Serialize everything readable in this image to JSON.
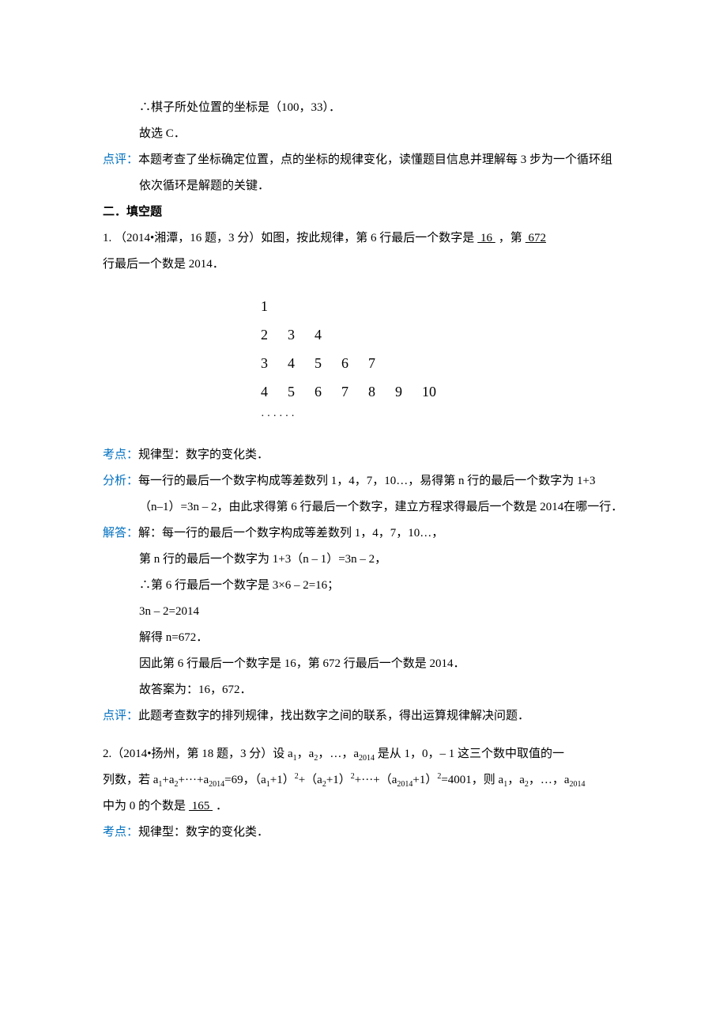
{
  "intro": {
    "line1": "∴棋子所处位置的坐标是（100，33）．",
    "line2": "故选 C．"
  },
  "review": {
    "label": "点评：",
    "text": "本题考查了坐标确定位置，点的坐标的规律变化，读懂题目信息并理解每 3 步为一个循环组依次循环是解题的关键．"
  },
  "section2": {
    "title": "二．填空题"
  },
  "q1": {
    "stem_a": "1.  （2014•湘潭，16 题，3 分）如图，按此规律，第 6 行最后一个数字是",
    "blank1": "  16  ",
    "stem_b": "，第",
    "blank2": "  672  ",
    "stem_c": "行最后一个数是 2014．",
    "pattern": {
      "r1": [
        "1"
      ],
      "r2": [
        "2",
        "3",
        "4"
      ],
      "r3": [
        "3",
        "4",
        "5",
        "6",
        "7"
      ],
      "r4": [
        "4",
        "5",
        "6",
        "7",
        "8",
        "9",
        "10"
      ],
      "dots": "······"
    },
    "kaodian": {
      "label": "考点：",
      "text": "规律型：数字的变化类．"
    },
    "fenxi": {
      "label": "分析：",
      "l1": "每一行的最后一个数字构成等差数列 1，4，7，10…，易得第 n 行的最后一个数字为 1+3",
      "l2": "（n–1）=3n – 2，由此求得第 6 行最后一个数字，建立方程求得最后一个数是 2014在哪一行．"
    },
    "jieda": {
      "label": "解答：",
      "l1": "解：每一行的最后一个数字构成等差数列 1，4，7，10…，",
      "l2": "第 n 行的最后一个数字为 1+3（n – 1）=3n – 2，",
      "l3": "∴第 6 行最后一个数字是 3×6 – 2=16；",
      "l4": "3n – 2=2014",
      "l5": "解得 n=672．",
      "l6": "因此第 6 行最后一个数字是 16，第 672 行最后一个数是 2014．",
      "l7": "故答案为：16，672．"
    },
    "dianping": {
      "label": "点评：",
      "text": "此题考查数字的排列规律，找出数字之间的联系，得出运算规律解决问题．"
    }
  },
  "q2": {
    "line1_a": "2.（2014•扬州，第 18 题，3 分）设 a",
    "line1_sub1": "1",
    "line1_b": "，a",
    "line1_sub2": "2",
    "line1_c": "，…，a",
    "line1_sub3": "2014",
    "line1_d": " 是从 1，0，– 1 这三个数中取值的一",
    "line2_a": "列数，若 a",
    "s1": "1",
    "plus1": "+a",
    "s2": "2",
    "plus2": "+···+a",
    "s3": "2014",
    "eq1": "=69，（a",
    "s4": "1",
    "p1": "+1）",
    "sup1": "2",
    "plus3": "+（a",
    "s5": "2",
    "p2": "+1）",
    "sup2": "2",
    "plus4": "+···+（a",
    "s6": "2014",
    "p3": "+1）",
    "sup3": "2",
    "eq2": "=4001，则 a",
    "s7": "1",
    "c2": "，a",
    "s8": "2",
    "c3": "，…，a",
    "s9": "2014",
    "line3_a": "中为 0 的个数是",
    "blank": "  165  ",
    "line3_b": "．",
    "kaodian": {
      "label": "考点：",
      "text": "规律型：数字的变化类．"
    }
  }
}
